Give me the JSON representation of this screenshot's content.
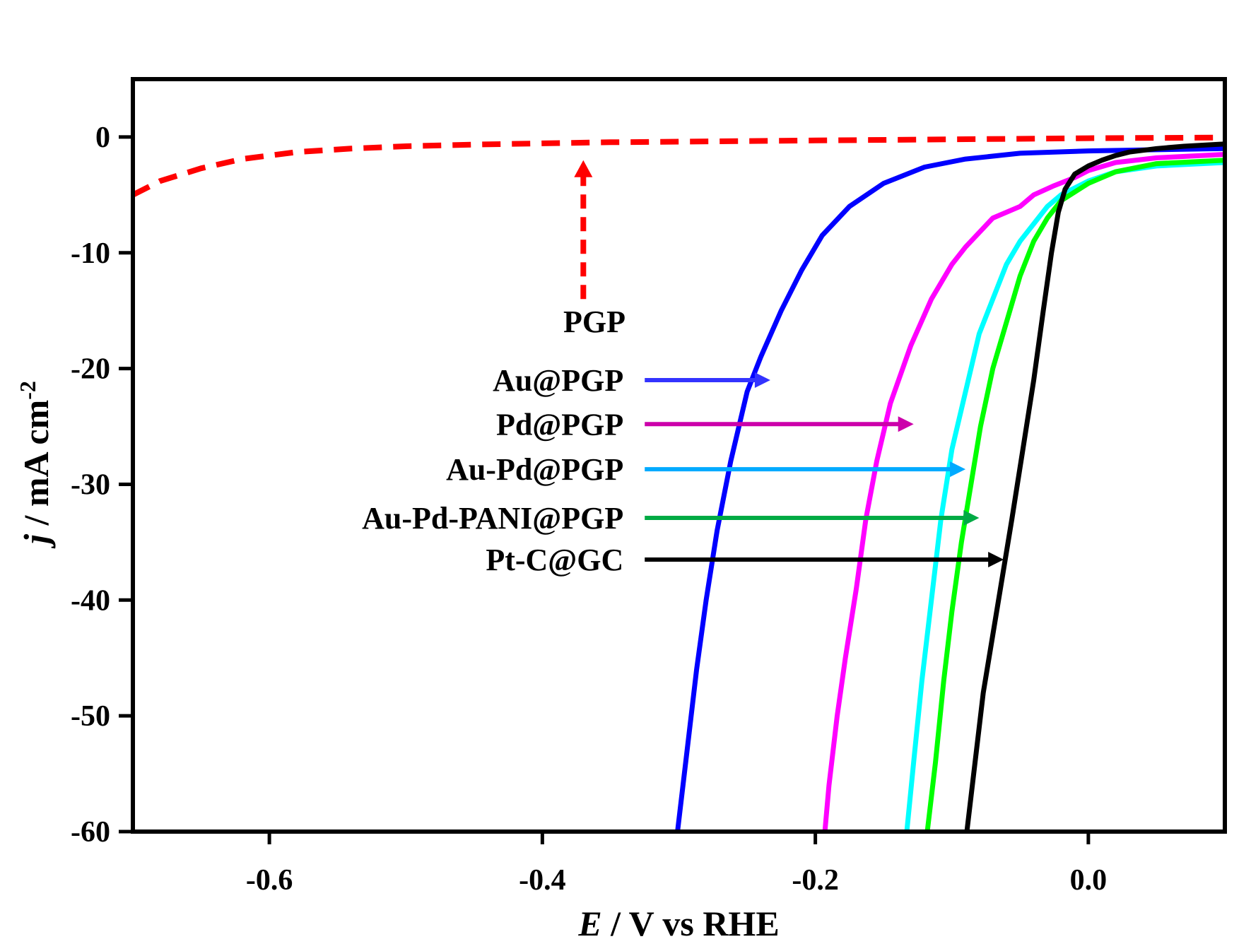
{
  "chart_data": {
    "type": "line",
    "xlabel": {
      "italic": "E",
      "rest": " / V vs RHE"
    },
    "ylabel": {
      "italic": "j",
      "rest": " / mA cm",
      "sup": "-2"
    },
    "xlim": [
      -0.7,
      0.1
    ],
    "ylim": [
      -60,
      5
    ],
    "xticks": [
      -0.6,
      -0.4,
      -0.2,
      0.0
    ],
    "xtick_labels": [
      "-0.6",
      "-0.4",
      "-0.2",
      "0.0"
    ],
    "yticks": [
      0,
      -10,
      -20,
      -30,
      -40,
      -50,
      -60
    ],
    "ytick_labels": [
      "0",
      "-10",
      "-20",
      "-30",
      "-40",
      "-50",
      "-60"
    ],
    "grid": false,
    "legend": "inline labels with arrows",
    "series": [
      {
        "name": "PGP",
        "color": "#ff0000",
        "dashed": true,
        "points": [
          [
            -0.7,
            -5.0
          ],
          [
            -0.68,
            -3.8
          ],
          [
            -0.65,
            -2.7
          ],
          [
            -0.62,
            -1.9
          ],
          [
            -0.58,
            -1.3
          ],
          [
            -0.54,
            -1.0
          ],
          [
            -0.5,
            -0.8
          ],
          [
            -0.45,
            -0.65
          ],
          [
            -0.4,
            -0.55
          ],
          [
            -0.35,
            -0.45
          ],
          [
            -0.3,
            -0.4
          ],
          [
            -0.2,
            -0.3
          ],
          [
            -0.1,
            -0.2
          ],
          [
            0.0,
            -0.1
          ],
          [
            0.1,
            -0.05
          ]
        ]
      },
      {
        "name": "Au@PGP",
        "color": "#0000ff",
        "dashed": false,
        "points": [
          [
            -0.301,
            -60
          ],
          [
            -0.295,
            -54
          ],
          [
            -0.287,
            -46
          ],
          [
            -0.28,
            -40
          ],
          [
            -0.272,
            -34
          ],
          [
            -0.262,
            -28
          ],
          [
            -0.25,
            -22
          ],
          [
            -0.24,
            -19
          ],
          [
            -0.225,
            -15
          ],
          [
            -0.21,
            -11.5
          ],
          [
            -0.195,
            -8.5
          ],
          [
            -0.175,
            -6.0
          ],
          [
            -0.15,
            -4.0
          ],
          [
            -0.12,
            -2.6
          ],
          [
            -0.09,
            -1.9
          ],
          [
            -0.05,
            -1.4
          ],
          [
            0.0,
            -1.2
          ],
          [
            0.05,
            -1.1
          ],
          [
            0.1,
            -1.0
          ]
        ]
      },
      {
        "name": "Pd@PGP",
        "color": "#ff00ff",
        "dashed": false,
        "points": [
          [
            -0.193,
            -60
          ],
          [
            -0.19,
            -56
          ],
          [
            -0.184,
            -50
          ],
          [
            -0.178,
            -45
          ],
          [
            -0.17,
            -39
          ],
          [
            -0.163,
            -33
          ],
          [
            -0.155,
            -28
          ],
          [
            -0.145,
            -23
          ],
          [
            -0.13,
            -18
          ],
          [
            -0.115,
            -14
          ],
          [
            -0.1,
            -11
          ],
          [
            -0.09,
            -9.5
          ],
          [
            -0.07,
            -7
          ],
          [
            -0.05,
            -6
          ],
          [
            -0.04,
            -5
          ],
          [
            -0.025,
            -4.2
          ],
          [
            -0.01,
            -3.5
          ],
          [
            0.0,
            -2.9
          ],
          [
            0.02,
            -2.2
          ],
          [
            0.05,
            -1.8
          ],
          [
            0.1,
            -1.5
          ]
        ]
      },
      {
        "name": "Au-Pd@PGP",
        "color": "#00ffff",
        "dashed": false,
        "points": [
          [
            -0.133,
            -60
          ],
          [
            -0.128,
            -54
          ],
          [
            -0.122,
            -47
          ],
          [
            -0.115,
            -40
          ],
          [
            -0.108,
            -33
          ],
          [
            -0.1,
            -27
          ],
          [
            -0.09,
            -22
          ],
          [
            -0.08,
            -17
          ],
          [
            -0.07,
            -14
          ],
          [
            -0.06,
            -11
          ],
          [
            -0.05,
            -9
          ],
          [
            -0.04,
            -7.5
          ],
          [
            -0.03,
            -6
          ],
          [
            -0.02,
            -5
          ],
          [
            0.0,
            -3.8
          ],
          [
            0.02,
            -3.0
          ],
          [
            0.05,
            -2.5
          ],
          [
            0.1,
            -2.2
          ]
        ]
      },
      {
        "name": "Au-Pd-PANI@PGP",
        "color": "#00ff00",
        "dashed": false,
        "points": [
          [
            -0.118,
            -60
          ],
          [
            -0.112,
            -54
          ],
          [
            -0.106,
            -47
          ],
          [
            -0.1,
            -41
          ],
          [
            -0.093,
            -35
          ],
          [
            -0.086,
            -30
          ],
          [
            -0.079,
            -25
          ],
          [
            -0.07,
            -20
          ],
          [
            -0.06,
            -16
          ],
          [
            -0.05,
            -12
          ],
          [
            -0.04,
            -9
          ],
          [
            -0.03,
            -7
          ],
          [
            -0.02,
            -5.5
          ],
          [
            0.0,
            -4.0
          ],
          [
            0.02,
            -3.0
          ],
          [
            0.05,
            -2.3
          ],
          [
            0.1,
            -2.0
          ]
        ]
      },
      {
        "name": "Pt-C@GC",
        "color": "#000000",
        "dashed": false,
        "points": [
          [
            -0.089,
            -60
          ],
          [
            -0.083,
            -54
          ],
          [
            -0.077,
            -48
          ],
          [
            -0.07,
            -43
          ],
          [
            -0.063,
            -38
          ],
          [
            -0.056,
            -33
          ],
          [
            -0.048,
            -27
          ],
          [
            -0.04,
            -21
          ],
          [
            -0.033,
            -15
          ],
          [
            -0.027,
            -10
          ],
          [
            -0.022,
            -6.5
          ],
          [
            -0.017,
            -4.5
          ],
          [
            -0.01,
            -3.2
          ],
          [
            0.0,
            -2.5
          ],
          [
            0.01,
            -2.0
          ],
          [
            0.02,
            -1.6
          ],
          [
            0.03,
            -1.3
          ],
          [
            0.05,
            -1.0
          ],
          [
            0.07,
            -0.8
          ],
          [
            0.1,
            -0.6
          ]
        ]
      }
    ],
    "annotations": [
      {
        "label": "PGP",
        "arrow_color": "#ff0000",
        "arrow_dashed": true,
        "arrow_vertical": true,
        "x": -0.37,
        "y_from": -14,
        "y_to": -2
      },
      {
        "label": "Au@PGP",
        "arrow_color": "#3333ff",
        "y": -21,
        "x_from": -0.325,
        "x_to": -0.233
      },
      {
        "label": "Pd@PGP",
        "arrow_color": "#cc00aa",
        "y": -24.8,
        "x_from": -0.325,
        "x_to": -0.128
      },
      {
        "label": "Au-Pd@PGP",
        "arrow_color": "#00aaff",
        "y": -28.7,
        "x_from": -0.325,
        "x_to": -0.09
      },
      {
        "label": "Au-Pd-PANI@PGP",
        "arrow_color": "#00aa44",
        "y": -32.9,
        "x_from": -0.325,
        "x_to": -0.08
      },
      {
        "label": "Pt-C@GC",
        "arrow_color": "#000000",
        "y": -36.5,
        "x_from": -0.325,
        "x_to": -0.062
      }
    ]
  }
}
